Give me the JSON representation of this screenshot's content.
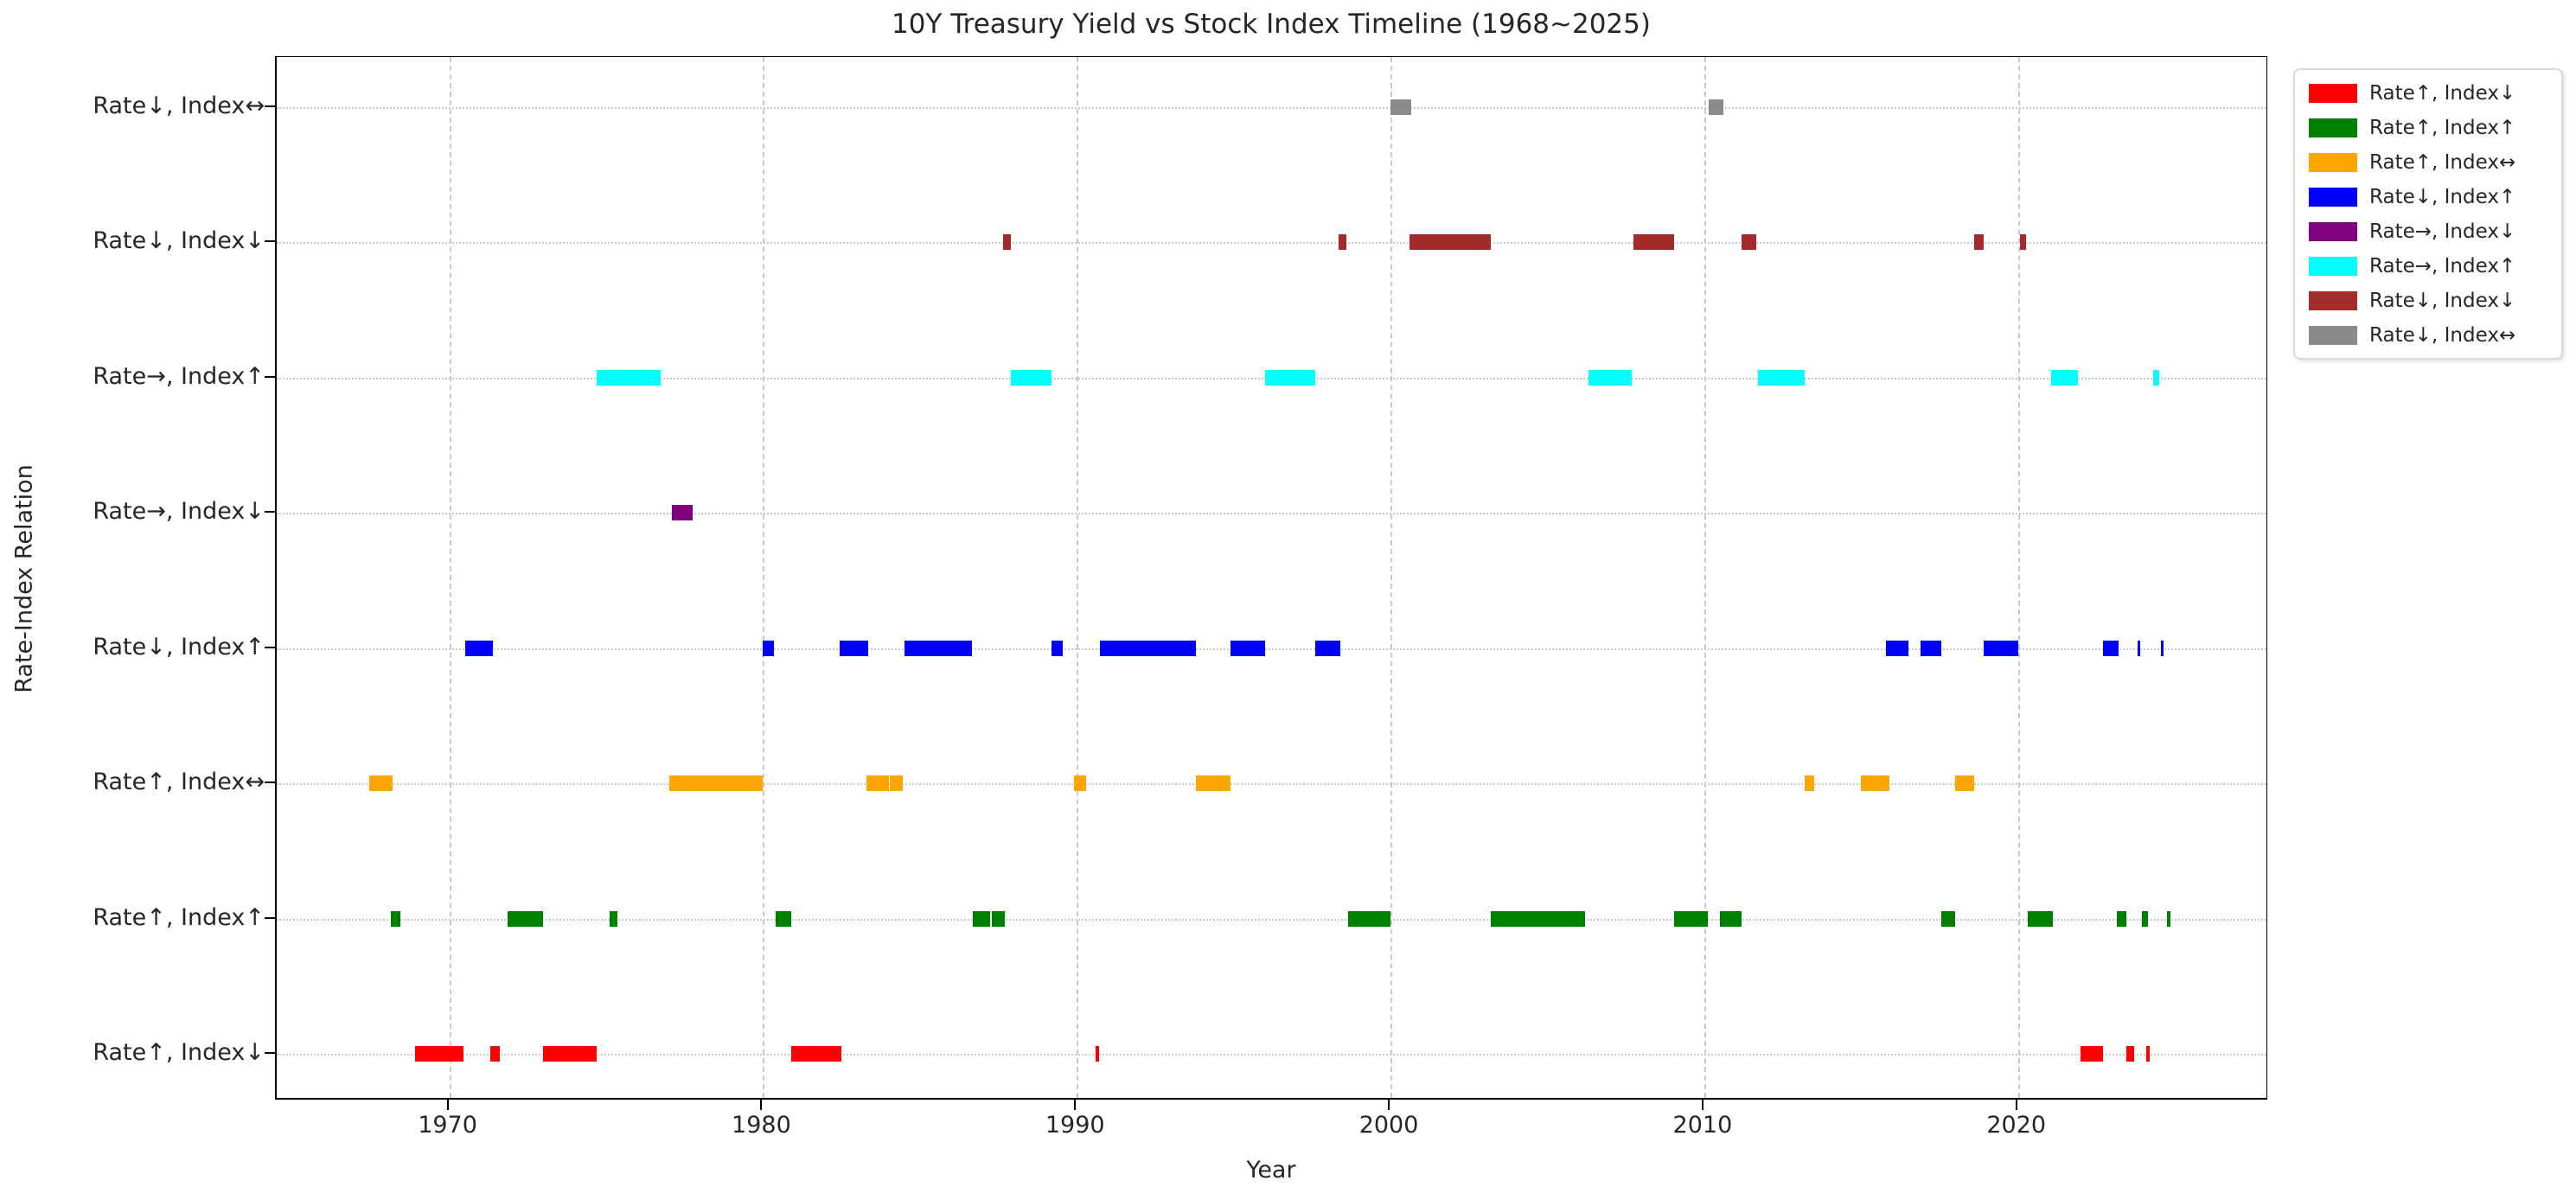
{
  "chart_data": {
    "type": "timeline_broken_barh",
    "title": "10Y Treasury Yield vs Stock Index Timeline (1968~2025)",
    "xlabel": "Year",
    "ylabel": "Rate-Index Relation",
    "xlim": [
      1964.5,
      2028.0
    ],
    "xticks": [
      1970,
      1980,
      1990,
      2000,
      2010,
      2020
    ],
    "grid": true,
    "legend_position": "upper-right-outside",
    "rows": [
      {
        "label": "Rate↓, Index↔",
        "color": "#8a8a8a",
        "intervals": [
          [
            2000.0,
            2000.65
          ],
          [
            2010.15,
            2010.6
          ]
        ]
      },
      {
        "label": "Rate↓, Index↓",
        "color": "#a52a2a",
        "intervals": [
          [
            1987.65,
            1987.9
          ],
          [
            1998.35,
            1998.6
          ],
          [
            2000.6,
            2003.2
          ],
          [
            2007.75,
            2009.05
          ],
          [
            2011.2,
            2011.65
          ],
          [
            2018.6,
            2018.9
          ],
          [
            2020.05,
            2020.25
          ]
        ]
      },
      {
        "label": "Rate→, Index↑",
        "color": "#00ffff",
        "intervals": [
          [
            1974.7,
            1976.75
          ],
          [
            1987.9,
            1989.2
          ],
          [
            1996.0,
            1997.6
          ],
          [
            2006.3,
            2007.7
          ],
          [
            2011.7,
            2013.2
          ],
          [
            2021.05,
            2021.9
          ],
          [
            2024.3,
            2024.5
          ]
        ]
      },
      {
        "label": "Rate→, Index↓",
        "color": "#800080",
        "intervals": [
          [
            1977.1,
            1977.75
          ]
        ]
      },
      {
        "label": "Rate↓, Index↑",
        "color": "#0000ff",
        "intervals": [
          [
            1970.5,
            1971.4
          ],
          [
            1980.0,
            1980.35
          ],
          [
            1982.45,
            1983.35
          ],
          [
            1984.5,
            1986.65
          ],
          [
            1989.2,
            1989.55
          ],
          [
            1990.75,
            1993.8
          ],
          [
            1994.9,
            1996.0
          ],
          [
            1997.6,
            1998.4
          ],
          [
            2015.8,
            2016.5
          ],
          [
            2016.9,
            2017.55
          ],
          [
            2018.9,
            2020.0
          ],
          [
            2022.7,
            2023.2
          ],
          [
            2023.8,
            2023.9
          ],
          [
            2024.55,
            2024.65
          ]
        ]
      },
      {
        "label": "Rate↑, Index↔",
        "color": "#ffa500",
        "intervals": [
          [
            1967.45,
            1968.2
          ],
          [
            1977.0,
            1980.0
          ],
          [
            1983.3,
            1984.0
          ],
          [
            1984.05,
            1984.45
          ],
          [
            1989.9,
            1990.3
          ],
          [
            1993.8,
            1994.9
          ],
          [
            2013.2,
            2013.5
          ],
          [
            2015.0,
            2015.9
          ],
          [
            2018.0,
            2018.6
          ]
        ]
      },
      {
        "label": "Rate↑, Index↑",
        "color": "#008000",
        "intervals": [
          [
            1968.15,
            1968.45
          ],
          [
            1971.85,
            1973.0
          ],
          [
            1975.1,
            1975.35
          ],
          [
            1980.4,
            1980.9
          ],
          [
            1986.7,
            1987.25
          ],
          [
            1987.3,
            1987.7
          ],
          [
            1998.65,
            2000.0
          ],
          [
            2003.2,
            2006.2
          ],
          [
            2009.05,
            2010.1
          ],
          [
            2010.5,
            2011.2
          ],
          [
            2017.55,
            2018.0
          ],
          [
            2020.3,
            2021.1
          ],
          [
            2023.15,
            2023.45
          ],
          [
            2023.95,
            2024.15
          ],
          [
            2024.75,
            2024.85
          ]
        ]
      },
      {
        "label": "Rate↑, Index↓",
        "color": "#ff0000",
        "intervals": [
          [
            1968.9,
            1970.45
          ],
          [
            1971.3,
            1971.6
          ],
          [
            1973.0,
            1974.7
          ],
          [
            1980.9,
            1982.5
          ],
          [
            1990.6,
            1990.7
          ],
          [
            2022.0,
            2022.7
          ],
          [
            2023.45,
            2023.7
          ],
          [
            2024.1,
            2024.2
          ]
        ]
      }
    ],
    "legend": [
      {
        "label": "Rate↑, Index↓",
        "color": "#ff0000"
      },
      {
        "label": "Rate↑, Index↑",
        "color": "#008000"
      },
      {
        "label": "Rate↑, Index↔",
        "color": "#ffa500"
      },
      {
        "label": "Rate↓, Index↑",
        "color": "#0000ff"
      },
      {
        "label": "Rate→, Index↓",
        "color": "#800080"
      },
      {
        "label": "Rate→, Index↑",
        "color": "#00ffff"
      },
      {
        "label": "Rate↓, Index↓",
        "color": "#a52a2a"
      },
      {
        "label": "Rate↓, Index↔",
        "color": "#8a8a8a"
      }
    ]
  }
}
